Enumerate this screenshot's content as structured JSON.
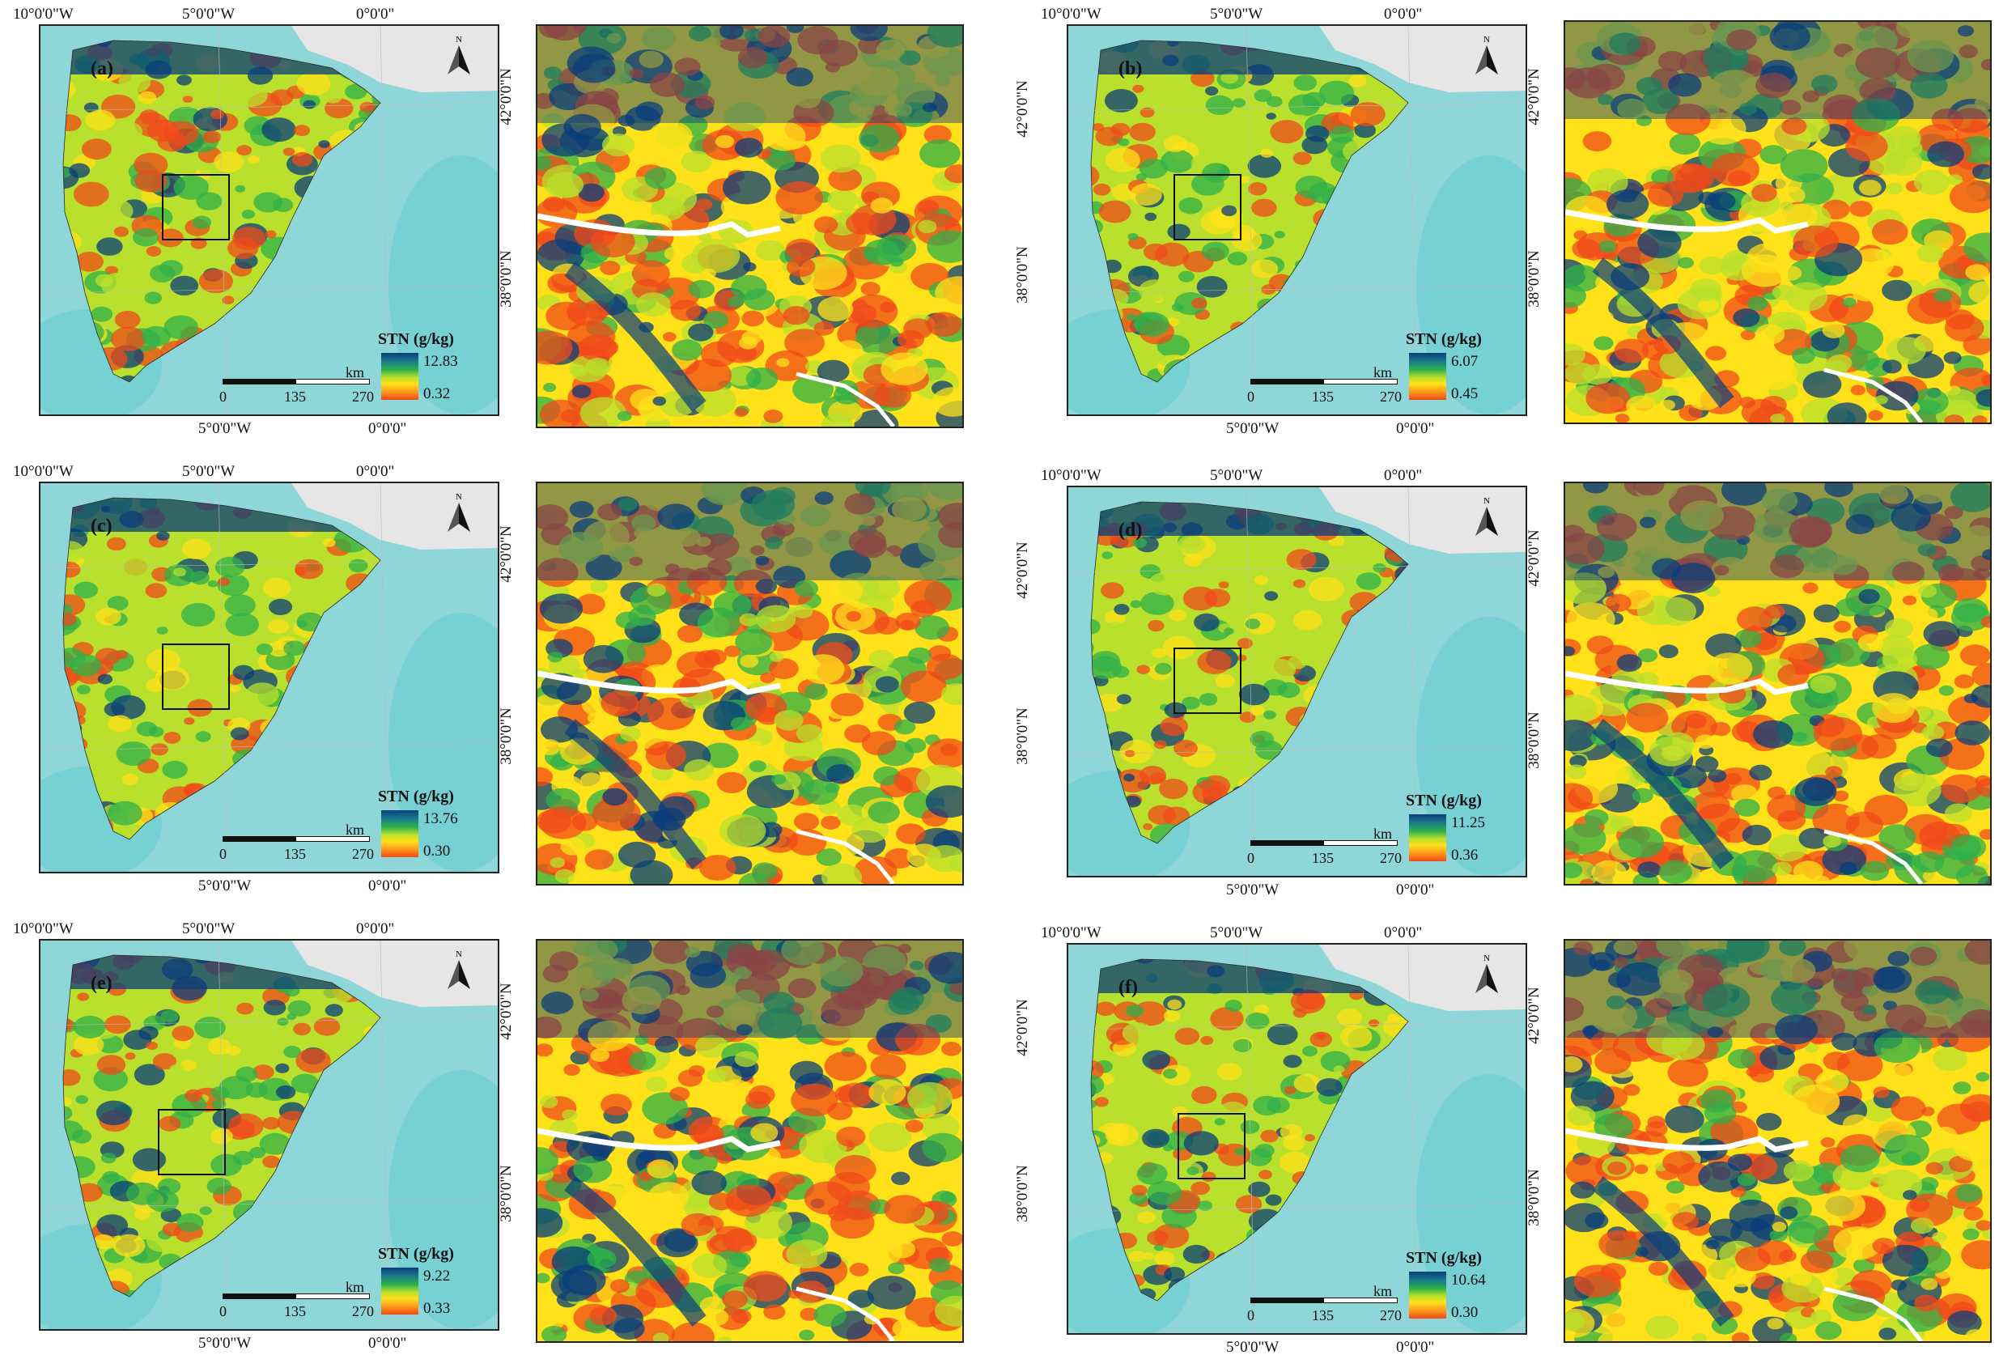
{
  "panels": [
    {
      "letter": "(a)",
      "north": "N",
      "legend_title": "STN (g/kg)",
      "legend_max": "12.83",
      "legend_min": "0.32"
    },
    {
      "letter": "(b)",
      "north": "N",
      "legend_title": "STN (g/kg)",
      "legend_max": "6.07",
      "legend_min": "0.45"
    },
    {
      "letter": "(c)",
      "north": "N",
      "legend_title": "STN (g/kg)",
      "legend_max": "13.76",
      "legend_min": "0.30"
    },
    {
      "letter": "(d)",
      "north": "N",
      "legend_title": "STN (g/kg)",
      "legend_max": "11.25",
      "legend_min": "0.36"
    },
    {
      "letter": "(e)",
      "north": "N",
      "legend_title": "STN (g/kg)",
      "legend_max": "9.22",
      "legend_min": "0.33"
    },
    {
      "letter": "(f)",
      "north": "N",
      "legend_title": "STN (g/kg)",
      "legend_max": "10.64",
      "legend_min": "0.30"
    }
  ],
  "graticule": {
    "lon_10w": "10°0'0\"W",
    "lon_5w": "5°0'0\"W",
    "lon_0": "0°0'0\"",
    "lat_42n": "42°0'0\"N",
    "lat_38n": "38°0'0\"N"
  },
  "scale": {
    "unit": "km",
    "ticks": [
      "0",
      "135",
      "270"
    ]
  },
  "colors": {
    "sea": "#8fd6d8",
    "sea_deep": "#5fc9cc",
    "land_neighbor": "#e6e6e6",
    "high": "#0a3d7a",
    "mid_high": "#2fb04a",
    "mid": "#b8e02c",
    "mid_low": "#ffe11a",
    "low": "#f04a1a"
  }
}
